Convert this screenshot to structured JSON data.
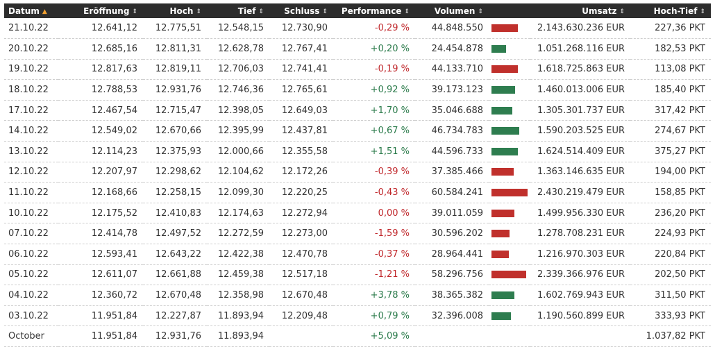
{
  "headers": {
    "date": "Datum",
    "open": "Eröffnung",
    "high": "Hoch",
    "low": "Tief",
    "close": "Schluss",
    "performance": "Performance",
    "volume": "Volumen",
    "turnover": "Umsatz",
    "range": "Hoch-Tief"
  },
  "colors": {
    "negative": "#c0282c",
    "positive": "#2a7a4a",
    "bar_red": "#c0302c",
    "bar_green": "#2e7d4f",
    "header_bg": "#2d2d2d",
    "sort_active": "#f0a030"
  },
  "rows": [
    {
      "date": "21.10.22",
      "open": "12.641,12",
      "high": "12.775,51",
      "low": "12.548,15",
      "close": "12.730,90",
      "perf": "-0,29 %",
      "perf_sign": "neg",
      "volume": "44.848.550",
      "volume_value": 44848550,
      "turnover": "2.143.630.236 EUR",
      "range": "227,36 PKT"
    },
    {
      "date": "20.10.22",
      "open": "12.685,16",
      "high": "12.811,31",
      "low": "12.628,78",
      "close": "12.767,41",
      "perf": "+0,20 %",
      "perf_sign": "pos",
      "volume": "24.454.878",
      "volume_value": 24454878,
      "turnover": "1.051.268.116 EUR",
      "range": "182,53 PKT"
    },
    {
      "date": "19.10.22",
      "open": "12.817,63",
      "high": "12.819,11",
      "low": "12.706,03",
      "close": "12.741,41",
      "perf": "-0,19 %",
      "perf_sign": "neg",
      "volume": "44.133.710",
      "volume_value": 44133710,
      "turnover": "1.618.725.863 EUR",
      "range": "113,08 PKT"
    },
    {
      "date": "18.10.22",
      "open": "12.788,53",
      "high": "12.931,76",
      "low": "12.746,36",
      "close": "12.765,61",
      "perf": "+0,92 %",
      "perf_sign": "pos",
      "volume": "39.173.123",
      "volume_value": 39173123,
      "turnover": "1.460.013.006 EUR",
      "range": "185,40 PKT"
    },
    {
      "date": "17.10.22",
      "open": "12.467,54",
      "high": "12.715,47",
      "low": "12.398,05",
      "close": "12.649,03",
      "perf": "+1,70 %",
      "perf_sign": "pos",
      "volume": "35.046.688",
      "volume_value": 35046688,
      "turnover": "1.305.301.737 EUR",
      "range": "317,42 PKT"
    },
    {
      "date": "14.10.22",
      "open": "12.549,02",
      "high": "12.670,66",
      "low": "12.395,99",
      "close": "12.437,81",
      "perf": "+0,67 %",
      "perf_sign": "pos",
      "volume": "46.734.783",
      "volume_value": 46734783,
      "turnover": "1.590.203.525 EUR",
      "range": "274,67 PKT"
    },
    {
      "date": "13.10.22",
      "open": "12.114,23",
      "high": "12.375,93",
      "low": "12.000,66",
      "close": "12.355,58",
      "perf": "+1,51 %",
      "perf_sign": "pos",
      "volume": "44.596.733",
      "volume_value": 44596733,
      "turnover": "1.624.514.409 EUR",
      "range": "375,27 PKT"
    },
    {
      "date": "12.10.22",
      "open": "12.207,97",
      "high": "12.298,62",
      "low": "12.104,62",
      "close": "12.172,26",
      "perf": "-0,39 %",
      "perf_sign": "neg",
      "volume": "37.385.466",
      "volume_value": 37385466,
      "turnover": "1.363.146.635 EUR",
      "range": "194,00 PKT"
    },
    {
      "date": "11.10.22",
      "open": "12.168,66",
      "high": "12.258,15",
      "low": "12.099,30",
      "close": "12.220,25",
      "perf": "-0,43 %",
      "perf_sign": "neg",
      "volume": "60.584.241",
      "volume_value": 60584241,
      "turnover": "2.430.219.479 EUR",
      "range": "158,85 PKT"
    },
    {
      "date": "10.10.22",
      "open": "12.175,52",
      "high": "12.410,83",
      "low": "12.174,63",
      "close": "12.272,94",
      "perf": "0,00 %",
      "perf_sign": "neg",
      "volume": "39.011.059",
      "volume_value": 39011059,
      "turnover": "1.499.956.330 EUR",
      "range": "236,20 PKT"
    },
    {
      "date": "07.10.22",
      "open": "12.414,78",
      "high": "12.497,52",
      "low": "12.272,59",
      "close": "12.273,00",
      "perf": "-1,59 %",
      "perf_sign": "neg",
      "volume": "30.596.202",
      "volume_value": 30596202,
      "turnover": "1.278.708.231 EUR",
      "range": "224,93 PKT"
    },
    {
      "date": "06.10.22",
      "open": "12.593,41",
      "high": "12.643,22",
      "low": "12.422,38",
      "close": "12.470,78",
      "perf": "-0,37 %",
      "perf_sign": "neg",
      "volume": "28.964.441",
      "volume_value": 28964441,
      "turnover": "1.216.970.303 EUR",
      "range": "220,84 PKT"
    },
    {
      "date": "05.10.22",
      "open": "12.611,07",
      "high": "12.661,88",
      "low": "12.459,38",
      "close": "12.517,18",
      "perf": "-1,21 %",
      "perf_sign": "neg",
      "volume": "58.296.756",
      "volume_value": 58296756,
      "turnover": "2.339.366.976 EUR",
      "range": "202,50 PKT"
    },
    {
      "date": "04.10.22",
      "open": "12.360,72",
      "high": "12.670,48",
      "low": "12.358,98",
      "close": "12.670,48",
      "perf": "+3,78 %",
      "perf_sign": "pos",
      "volume": "38.365.382",
      "volume_value": 38365382,
      "turnover": "1.602.769.943 EUR",
      "range": "311,50 PKT"
    },
    {
      "date": "03.10.22",
      "open": "11.951,84",
      "high": "12.227,87",
      "low": "11.893,94",
      "close": "12.209,48",
      "perf": "+0,79 %",
      "perf_sign": "pos",
      "volume": "32.396.008",
      "volume_value": 32396008,
      "turnover": "1.190.560.899 EUR",
      "range": "333,93 PKT"
    }
  ],
  "summary": {
    "label": "October",
    "open": "11.951,84",
    "high": "12.931,76",
    "low": "11.893,94",
    "close": "",
    "perf": "+5,09 %",
    "perf_sign": "pos",
    "volume": "",
    "turnover": "",
    "range": "1.037,82 PKT"
  }
}
